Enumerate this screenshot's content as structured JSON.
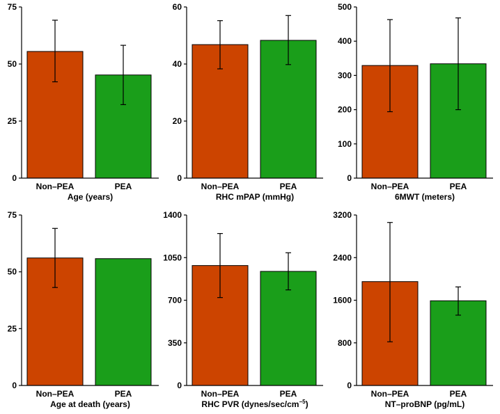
{
  "colors": {
    "non_pea": "#CC4400",
    "pea": "#1A9E1A",
    "axis": "#000000"
  },
  "chart_data": [
    {
      "type": "bar",
      "xlabel": "Age (years)",
      "categories": [
        "Non–PEA",
        "PEA"
      ],
      "values": [
        55.5,
        45.2
      ],
      "errors": [
        [
          42.2,
          69.2
        ],
        [
          32.2,
          58.2
        ]
      ],
      "ylim": [
        0,
        75
      ],
      "yticks": [
        0,
        25,
        50,
        75
      ],
      "ytick_labels": [
        "0",
        "25",
        "50",
        "75"
      ]
    },
    {
      "type": "bar",
      "xlabel": "RHC mPAP (mmHg)",
      "categories": [
        "Non–PEA",
        "PEA"
      ],
      "values": [
        46.8,
        48.3
      ],
      "errors": [
        [
          38.3,
          55.2
        ],
        [
          39.8,
          57.0
        ]
      ],
      "ylim": [
        0,
        60
      ],
      "yticks": [
        0,
        20,
        40,
        60
      ],
      "ytick_labels": [
        "0",
        "20",
        "40",
        "60"
      ]
    },
    {
      "type": "bar",
      "xlabel": "6MWT (meters)",
      "categories": [
        "Non–PEA",
        "PEA"
      ],
      "values": [
        329,
        334
      ],
      "errors": [
        [
          194,
          463
        ],
        [
          200,
          468
        ]
      ],
      "ylim": [
        0,
        500
      ],
      "yticks": [
        0,
        100,
        200,
        300,
        400,
        500
      ],
      "ytick_labels": [
        "0",
        "100",
        "200",
        "300",
        "400",
        "500"
      ]
    },
    {
      "type": "bar",
      "xlabel": "Age at death (years)",
      "categories": [
        "Non–PEA",
        "PEA"
      ],
      "values": [
        56.1,
        55.8
      ],
      "errors": [
        [
          43.1,
          69.1
        ],
        null
      ],
      "ylim": [
        0,
        75
      ],
      "yticks": [
        0,
        25,
        50,
        75
      ],
      "ytick_labels": [
        "0",
        "25",
        "50",
        "75"
      ]
    },
    {
      "type": "bar",
      "xlabel": "RHC PVR (dynes/sec/cm",
      "xlabel_sup": "−5",
      "xlabel_suffix": ")",
      "categories": [
        "Non–PEA",
        "PEA"
      ],
      "values": [
        985,
        937
      ],
      "errors": [
        [
          722,
          1248
        ],
        [
          785,
          1090
        ]
      ],
      "ylim": [
        0,
        1400
      ],
      "yticks": [
        0,
        350,
        700,
        1050,
        1400
      ],
      "ytick_labels": [
        "0",
        "350",
        "700",
        "1050",
        "1400"
      ]
    },
    {
      "type": "bar",
      "xlabel": "NT–proBNP (pg/mL)",
      "categories": [
        "Non–PEA",
        "PEA"
      ],
      "values": [
        1950,
        1590
      ],
      "errors": [
        [
          820,
          3060
        ],
        [
          1320,
          1850
        ]
      ],
      "ylim": [
        0,
        3200
      ],
      "yticks": [
        0,
        800,
        1600,
        2400,
        3200
      ],
      "ytick_labels": [
        "0",
        "800",
        "1600",
        "2400",
        "3200"
      ]
    }
  ]
}
